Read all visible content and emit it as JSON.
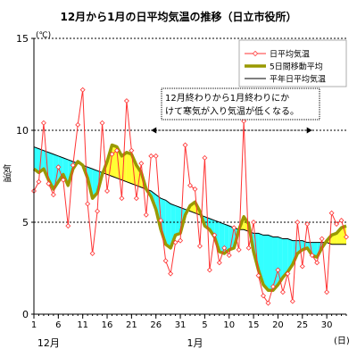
{
  "chart_data": {
    "type": "line",
    "title": "12月から1月の日平均気温の推移（日立市役所）",
    "ylabel": "気温",
    "yunit": "(℃)",
    "xunit": "(日)",
    "ylim": [
      0,
      15
    ],
    "yticks": [
      0,
      5,
      10,
      15
    ],
    "xticks": [
      {
        "day": 1,
        "label": "1"
      },
      {
        "day": 6,
        "label": "6"
      },
      {
        "day": 11,
        "label": "11"
      },
      {
        "day": 16,
        "label": "16"
      },
      {
        "day": 21,
        "label": "21"
      },
      {
        "day": 26,
        "label": "26"
      },
      {
        "day": 31,
        "label": "31"
      },
      {
        "day": 36,
        "label": "5"
      },
      {
        "day": 41,
        "label": "10"
      },
      {
        "day": 46,
        "label": "15"
      },
      {
        "day": 51,
        "label": "20"
      },
      {
        "day": 56,
        "label": "25"
      },
      {
        "day": 61,
        "label": "30"
      }
    ],
    "month_labels": [
      {
        "day": 4,
        "label": "12月"
      },
      {
        "day": 34,
        "label": "1月"
      }
    ],
    "grid": true,
    "legend_position": "top-right",
    "annotation": {
      "lines": [
        "12月終わりから1月終わりにか",
        "けて寒気が入り気温が低くなる。"
      ],
      "range_start_day": 25,
      "range_end_day": 58
    },
    "series": [
      {
        "name": "日平均気温",
        "color": "#ff3333",
        "marker": "diamond",
        "values": [
          6.7,
          7.2,
          10.4,
          7.1,
          6.5,
          8.0,
          7.3,
          4.8,
          8.1,
          10.3,
          12.2,
          6.0,
          3.3,
          5.6,
          10.4,
          6.7,
          8.7,
          8.9,
          6.3,
          11.6,
          8.9,
          6.3,
          8.2,
          5.4,
          8.6,
          8.6,
          5.1,
          2.9,
          2.2,
          3.9,
          4.0,
          9.2,
          7.0,
          6.8,
          3.7,
          8.5,
          2.4,
          4.3,
          2.8,
          3.6,
          3.2,
          4.7,
          3.5,
          10.5,
          3.6,
          5.0,
          2.1,
          1.0,
          0.6,
          1.5,
          2.4,
          1.2,
          2.2,
          0.7,
          5.0,
          2.6,
          4.9,
          3.2,
          2.8,
          4.1,
          1.2,
          5.5,
          4.9,
          5.1,
          4.2
        ]
      },
      {
        "name": "5日間移動平均",
        "color": "#999900",
        "values": [
          7.9,
          7.7,
          7.9,
          7.3,
          6.8,
          7.2,
          7.6,
          7.0,
          7.9,
          8.3,
          8.1,
          7.4,
          6.3,
          6.6,
          7.6,
          8.3,
          9.2,
          9.1,
          8.6,
          8.8,
          8.7,
          8.1,
          7.7,
          6.8,
          6.4,
          5.7,
          4.6,
          3.8,
          3.6,
          4.3,
          4.4,
          5.4,
          5.9,
          6.1,
          5.6,
          4.8,
          4.6,
          4.2,
          3.4,
          3.3,
          3.5,
          3.6,
          4.6,
          5.3,
          4.9,
          3.4,
          2.4,
          1.6,
          1.3,
          1.3,
          1.6,
          2.0,
          2.3,
          2.7,
          3.3,
          3.5,
          3.6,
          3.2,
          3.1,
          3.6,
          4.0,
          4.3,
          4.4,
          4.7,
          4.8
        ]
      },
      {
        "name": "平年日平均気温",
        "color": "#000000",
        "values": [
          9.1,
          9.0,
          8.9,
          8.8,
          8.7,
          8.6,
          8.5,
          8.4,
          8.3,
          8.2,
          8.1,
          8.0,
          7.9,
          7.8,
          7.7,
          7.6,
          7.5,
          7.4,
          7.3,
          7.2,
          7.1,
          7.0,
          6.9,
          6.8,
          6.7,
          6.5,
          6.3,
          6.2,
          6.0,
          5.9,
          5.8,
          5.7,
          5.6,
          5.5,
          5.4,
          5.3,
          5.2,
          5.1,
          5.0,
          4.9,
          4.8,
          4.7,
          4.6,
          4.6,
          4.5,
          4.4,
          4.4,
          4.3,
          4.3,
          4.2,
          4.2,
          4.1,
          4.1,
          4.0,
          4.0,
          4.0,
          3.9,
          3.9,
          3.9,
          3.9,
          3.9,
          3.8,
          3.8,
          3.8,
          3.8
        ]
      }
    ],
    "fill_colors": {
      "above_normal": "#ffff33",
      "below_normal": "#33ffff"
    }
  }
}
